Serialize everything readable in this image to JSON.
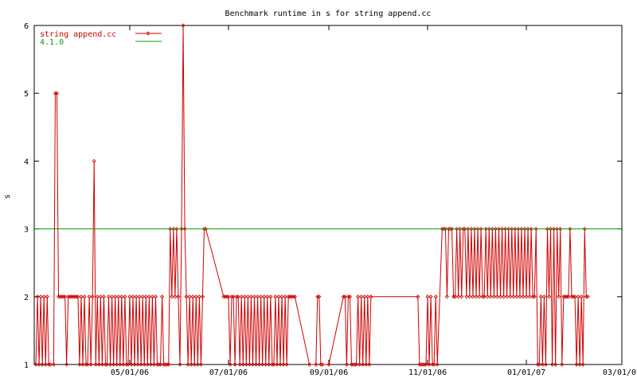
{
  "chart_data": {
    "type": "line",
    "title": "Benchmark runtime in s for string append.cc",
    "xlabel": "",
    "ylabel": "s",
    "x_axis": "date",
    "xlim": [
      "2006-03-03",
      "2007-03-01"
    ],
    "ylim": [
      1,
      6
    ],
    "x_ticks": [
      {
        "date": "2006-05-01",
        "label": "05/01/06"
      },
      {
        "date": "2006-07-01",
        "label": "07/01/06"
      },
      {
        "date": "2006-09-01",
        "label": "09/01/06"
      },
      {
        "date": "2006-11-01",
        "label": "11/01/06"
      },
      {
        "date": "2007-01-01",
        "label": "01/01/07"
      },
      {
        "date": "2007-03-01",
        "label": "03/01/07"
      }
    ],
    "y_ticks": [
      1,
      2,
      3,
      4,
      5,
      6
    ],
    "grid": false,
    "legend": "top-left",
    "series": [
      {
        "name": "string append.cc",
        "color": "#d00000",
        "marker": "diamond",
        "points": [
          [
            "2006-03-04",
            1
          ],
          [
            "2006-03-05",
            2
          ],
          [
            "2006-03-06",
            1
          ],
          [
            "2006-03-07",
            2
          ],
          [
            "2006-03-08",
            1
          ],
          [
            "2006-03-09",
            2
          ],
          [
            "2006-03-10",
            1
          ],
          [
            "2006-03-11",
            2
          ],
          [
            "2006-03-12",
            1
          ],
          [
            "2006-03-13",
            1
          ],
          [
            "2006-03-15",
            1
          ],
          [
            "2006-03-16",
            5
          ],
          [
            "2006-03-17",
            5
          ],
          [
            "2006-03-18",
            2
          ],
          [
            "2006-03-19",
            2
          ],
          [
            "2006-03-20",
            2
          ],
          [
            "2006-03-21",
            2
          ],
          [
            "2006-03-22",
            2
          ],
          [
            "2006-03-23",
            1
          ],
          [
            "2006-03-24",
            2
          ],
          [
            "2006-03-25",
            2
          ],
          [
            "2006-03-26",
            2
          ],
          [
            "2006-03-27",
            2
          ],
          [
            "2006-03-28",
            2
          ],
          [
            "2006-03-29",
            2
          ],
          [
            "2006-03-30",
            2
          ],
          [
            "2006-03-31",
            1
          ],
          [
            "2006-04-01",
            2
          ],
          [
            "2006-04-02",
            1
          ],
          [
            "2006-04-03",
            2
          ],
          [
            "2006-04-04",
            1
          ],
          [
            "2006-04-05",
            1
          ],
          [
            "2006-04-06",
            2
          ],
          [
            "2006-04-07",
            1
          ],
          [
            "2006-04-08",
            2
          ],
          [
            "2006-04-09",
            4
          ],
          [
            "2006-04-10",
            1
          ],
          [
            "2006-04-11",
            2
          ],
          [
            "2006-04-12",
            1
          ],
          [
            "2006-04-13",
            2
          ],
          [
            "2006-04-14",
            1
          ],
          [
            "2006-04-15",
            2
          ],
          [
            "2006-04-16",
            1
          ],
          [
            "2006-04-17",
            1
          ],
          [
            "2006-04-18",
            2
          ],
          [
            "2006-04-19",
            1
          ],
          [
            "2006-04-20",
            2
          ],
          [
            "2006-04-21",
            1
          ],
          [
            "2006-04-22",
            2
          ],
          [
            "2006-04-23",
            1
          ],
          [
            "2006-04-24",
            2
          ],
          [
            "2006-04-25",
            1
          ],
          [
            "2006-04-26",
            2
          ],
          [
            "2006-04-27",
            1
          ],
          [
            "2006-04-28",
            2
          ],
          [
            "2006-04-29",
            1
          ],
          [
            "2006-04-30",
            1
          ],
          [
            "2006-05-01",
            2
          ],
          [
            "2006-05-02",
            1
          ],
          [
            "2006-05-03",
            2
          ],
          [
            "2006-05-04",
            1
          ],
          [
            "2006-05-05",
            2
          ],
          [
            "2006-05-06",
            1
          ],
          [
            "2006-05-07",
            2
          ],
          [
            "2006-05-08",
            1
          ],
          [
            "2006-05-09",
            2
          ],
          [
            "2006-05-10",
            1
          ],
          [
            "2006-05-11",
            2
          ],
          [
            "2006-05-12",
            1
          ],
          [
            "2006-05-13",
            2
          ],
          [
            "2006-05-14",
            1
          ],
          [
            "2006-05-15",
            2
          ],
          [
            "2006-05-16",
            1
          ],
          [
            "2006-05-17",
            2
          ],
          [
            "2006-05-18",
            1
          ],
          [
            "2006-05-19",
            1
          ],
          [
            "2006-05-20",
            1
          ],
          [
            "2006-05-21",
            2
          ],
          [
            "2006-05-22",
            1
          ],
          [
            "2006-05-23",
            1
          ],
          [
            "2006-05-24",
            1
          ],
          [
            "2006-05-25",
            1
          ],
          [
            "2006-05-26",
            3
          ],
          [
            "2006-05-27",
            2
          ],
          [
            "2006-05-28",
            3
          ],
          [
            "2006-05-29",
            2
          ],
          [
            "2006-05-30",
            3
          ],
          [
            "2006-05-31",
            2
          ],
          [
            "2006-06-01",
            1
          ],
          [
            "2006-06-02",
            3
          ],
          [
            "2006-06-03",
            6
          ],
          [
            "2006-06-04",
            3
          ],
          [
            "2006-06-05",
            2
          ],
          [
            "2006-06-06",
            1
          ],
          [
            "2006-06-07",
            2
          ],
          [
            "2006-06-08",
            1
          ],
          [
            "2006-06-09",
            2
          ],
          [
            "2006-06-10",
            1
          ],
          [
            "2006-06-11",
            2
          ],
          [
            "2006-06-12",
            1
          ],
          [
            "2006-06-13",
            2
          ],
          [
            "2006-06-14",
            1
          ],
          [
            "2006-06-15",
            2
          ],
          [
            "2006-06-16",
            3
          ],
          [
            "2006-06-17",
            3
          ],
          [
            "2006-06-28",
            2
          ],
          [
            "2006-06-29",
            2
          ],
          [
            "2006-06-30",
            2
          ],
          [
            "2006-07-01",
            2
          ],
          [
            "2006-07-02",
            1
          ],
          [
            "2006-07-03",
            2
          ],
          [
            "2006-07-04",
            2
          ],
          [
            "2006-07-05",
            1
          ],
          [
            "2006-07-06",
            2
          ],
          [
            "2006-07-07",
            2
          ],
          [
            "2006-07-08",
            1
          ],
          [
            "2006-07-09",
            2
          ],
          [
            "2006-07-10",
            1
          ],
          [
            "2006-07-11",
            2
          ],
          [
            "2006-07-12",
            1
          ],
          [
            "2006-07-13",
            2
          ],
          [
            "2006-07-14",
            1
          ],
          [
            "2006-07-15",
            2
          ],
          [
            "2006-07-16",
            1
          ],
          [
            "2006-07-17",
            2
          ],
          [
            "2006-07-18",
            1
          ],
          [
            "2006-07-19",
            2
          ],
          [
            "2006-07-20",
            1
          ],
          [
            "2006-07-21",
            2
          ],
          [
            "2006-07-22",
            1
          ],
          [
            "2006-07-23",
            2
          ],
          [
            "2006-07-24",
            1
          ],
          [
            "2006-07-25",
            2
          ],
          [
            "2006-07-26",
            1
          ],
          [
            "2006-07-27",
            2
          ],
          [
            "2006-07-28",
            1
          ],
          [
            "2006-07-29",
            1
          ],
          [
            "2006-07-30",
            2
          ],
          [
            "2006-07-31",
            1
          ],
          [
            "2006-08-01",
            2
          ],
          [
            "2006-08-02",
            1
          ],
          [
            "2006-08-03",
            2
          ],
          [
            "2006-08-04",
            1
          ],
          [
            "2006-08-05",
            2
          ],
          [
            "2006-08-06",
            1
          ],
          [
            "2006-08-07",
            2
          ],
          [
            "2006-08-08",
            2
          ],
          [
            "2006-08-09",
            2
          ],
          [
            "2006-08-10",
            2
          ],
          [
            "2006-08-11",
            2
          ],
          [
            "2006-08-20",
            1
          ],
          [
            "2006-08-24",
            1
          ],
          [
            "2006-08-25",
            2
          ],
          [
            "2006-08-26",
            2
          ],
          [
            "2006-08-27",
            1
          ],
          [
            "2006-08-28",
            1
          ],
          [
            "2006-09-01",
            1
          ],
          [
            "2006-09-10",
            2
          ],
          [
            "2006-09-11",
            2
          ],
          [
            "2006-09-12",
            1
          ],
          [
            "2006-09-13",
            2
          ],
          [
            "2006-09-14",
            2
          ],
          [
            "2006-09-15",
            1
          ],
          [
            "2006-09-16",
            1
          ],
          [
            "2006-09-17",
            1
          ],
          [
            "2006-09-18",
            1
          ],
          [
            "2006-09-19",
            2
          ],
          [
            "2006-09-20",
            1
          ],
          [
            "2006-09-21",
            2
          ],
          [
            "2006-09-22",
            1
          ],
          [
            "2006-09-23",
            2
          ],
          [
            "2006-09-24",
            1
          ],
          [
            "2006-09-25",
            2
          ],
          [
            "2006-09-26",
            1
          ],
          [
            "2006-09-27",
            2
          ],
          [
            "2006-10-26",
            2
          ],
          [
            "2006-10-27",
            1
          ],
          [
            "2006-10-28",
            1
          ],
          [
            "2006-10-29",
            1
          ],
          [
            "2006-10-30",
            1
          ],
          [
            "2006-10-31",
            1
          ],
          [
            "2006-11-01",
            2
          ],
          [
            "2006-11-02",
            1
          ],
          [
            "2006-11-03",
            2
          ],
          [
            "2006-11-04",
            1
          ],
          [
            "2006-11-05",
            1
          ],
          [
            "2006-11-06",
            2
          ],
          [
            "2006-11-07",
            1
          ],
          [
            "2006-11-10",
            3
          ],
          [
            "2006-11-11",
            3
          ],
          [
            "2006-11-12",
            3
          ],
          [
            "2006-11-13",
            2
          ],
          [
            "2006-11-14",
            3
          ],
          [
            "2006-11-15",
            3
          ],
          [
            "2006-11-16",
            3
          ],
          [
            "2006-11-17",
            2
          ],
          [
            "2006-11-18",
            2
          ],
          [
            "2006-11-19",
            3
          ],
          [
            "2006-11-20",
            2
          ],
          [
            "2006-11-21",
            3
          ],
          [
            "2006-11-22",
            2
          ],
          [
            "2006-11-23",
            3
          ],
          [
            "2006-11-24",
            3
          ],
          [
            "2006-11-25",
            2
          ],
          [
            "2006-11-26",
            3
          ],
          [
            "2006-11-27",
            2
          ],
          [
            "2006-11-28",
            3
          ],
          [
            "2006-11-29",
            2
          ],
          [
            "2006-11-30",
            3
          ],
          [
            "2006-12-01",
            2
          ],
          [
            "2006-12-02",
            3
          ],
          [
            "2006-12-03",
            2
          ],
          [
            "2006-12-04",
            3
          ],
          [
            "2006-12-05",
            2
          ],
          [
            "2006-12-06",
            2
          ],
          [
            "2006-12-07",
            3
          ],
          [
            "2006-12-08",
            2
          ],
          [
            "2006-12-09",
            3
          ],
          [
            "2006-12-10",
            2
          ],
          [
            "2006-12-11",
            3
          ],
          [
            "2006-12-12",
            2
          ],
          [
            "2006-12-13",
            3
          ],
          [
            "2006-12-14",
            2
          ],
          [
            "2006-12-15",
            3
          ],
          [
            "2006-12-16",
            2
          ],
          [
            "2006-12-17",
            3
          ],
          [
            "2006-12-18",
            2
          ],
          [
            "2006-12-19",
            3
          ],
          [
            "2006-12-20",
            2
          ],
          [
            "2006-12-21",
            3
          ],
          [
            "2006-12-22",
            2
          ],
          [
            "2006-12-23",
            3
          ],
          [
            "2006-12-24",
            2
          ],
          [
            "2006-12-25",
            3
          ],
          [
            "2006-12-26",
            2
          ],
          [
            "2006-12-27",
            3
          ],
          [
            "2006-12-28",
            2
          ],
          [
            "2006-12-29",
            3
          ],
          [
            "2006-12-30",
            2
          ],
          [
            "2006-12-31",
            3
          ],
          [
            "2007-01-01",
            2
          ],
          [
            "2007-01-02",
            3
          ],
          [
            "2007-01-03",
            2
          ],
          [
            "2007-01-04",
            3
          ],
          [
            "2007-01-05",
            2
          ],
          [
            "2007-01-06",
            2
          ],
          [
            "2007-01-07",
            3
          ],
          [
            "2007-01-08",
            1
          ],
          [
            "2007-01-09",
            1
          ],
          [
            "2007-01-10",
            2
          ],
          [
            "2007-01-11",
            1
          ],
          [
            "2007-01-12",
            2
          ],
          [
            "2007-01-13",
            1
          ],
          [
            "2007-01-14",
            3
          ],
          [
            "2007-01-15",
            2
          ],
          [
            "2007-01-16",
            3
          ],
          [
            "2007-01-17",
            1
          ],
          [
            "2007-01-18",
            3
          ],
          [
            "2007-01-19",
            1
          ],
          [
            "2007-01-20",
            3
          ],
          [
            "2007-01-21",
            2
          ],
          [
            "2007-01-22",
            3
          ],
          [
            "2007-01-23",
            1
          ],
          [
            "2007-01-24",
            2
          ],
          [
            "2007-01-25",
            2
          ],
          [
            "2007-01-26",
            2
          ],
          [
            "2007-01-27",
            2
          ],
          [
            "2007-01-28",
            3
          ],
          [
            "2007-01-29",
            2
          ],
          [
            "2007-01-30",
            2
          ],
          [
            "2007-01-31",
            2
          ],
          [
            "2007-02-01",
            1
          ],
          [
            "2007-02-02",
            2
          ],
          [
            "2007-02-03",
            1
          ],
          [
            "2007-02-04",
            2
          ],
          [
            "2007-02-05",
            1
          ],
          [
            "2007-02-06",
            3
          ],
          [
            "2007-02-07",
            2
          ],
          [
            "2007-02-08",
            2
          ]
        ]
      },
      {
        "name": "4.1.0",
        "color": "#00a000",
        "marker": "none",
        "points": [
          [
            "2006-03-03",
            3
          ],
          [
            "2007-03-01",
            3
          ]
        ]
      }
    ]
  }
}
